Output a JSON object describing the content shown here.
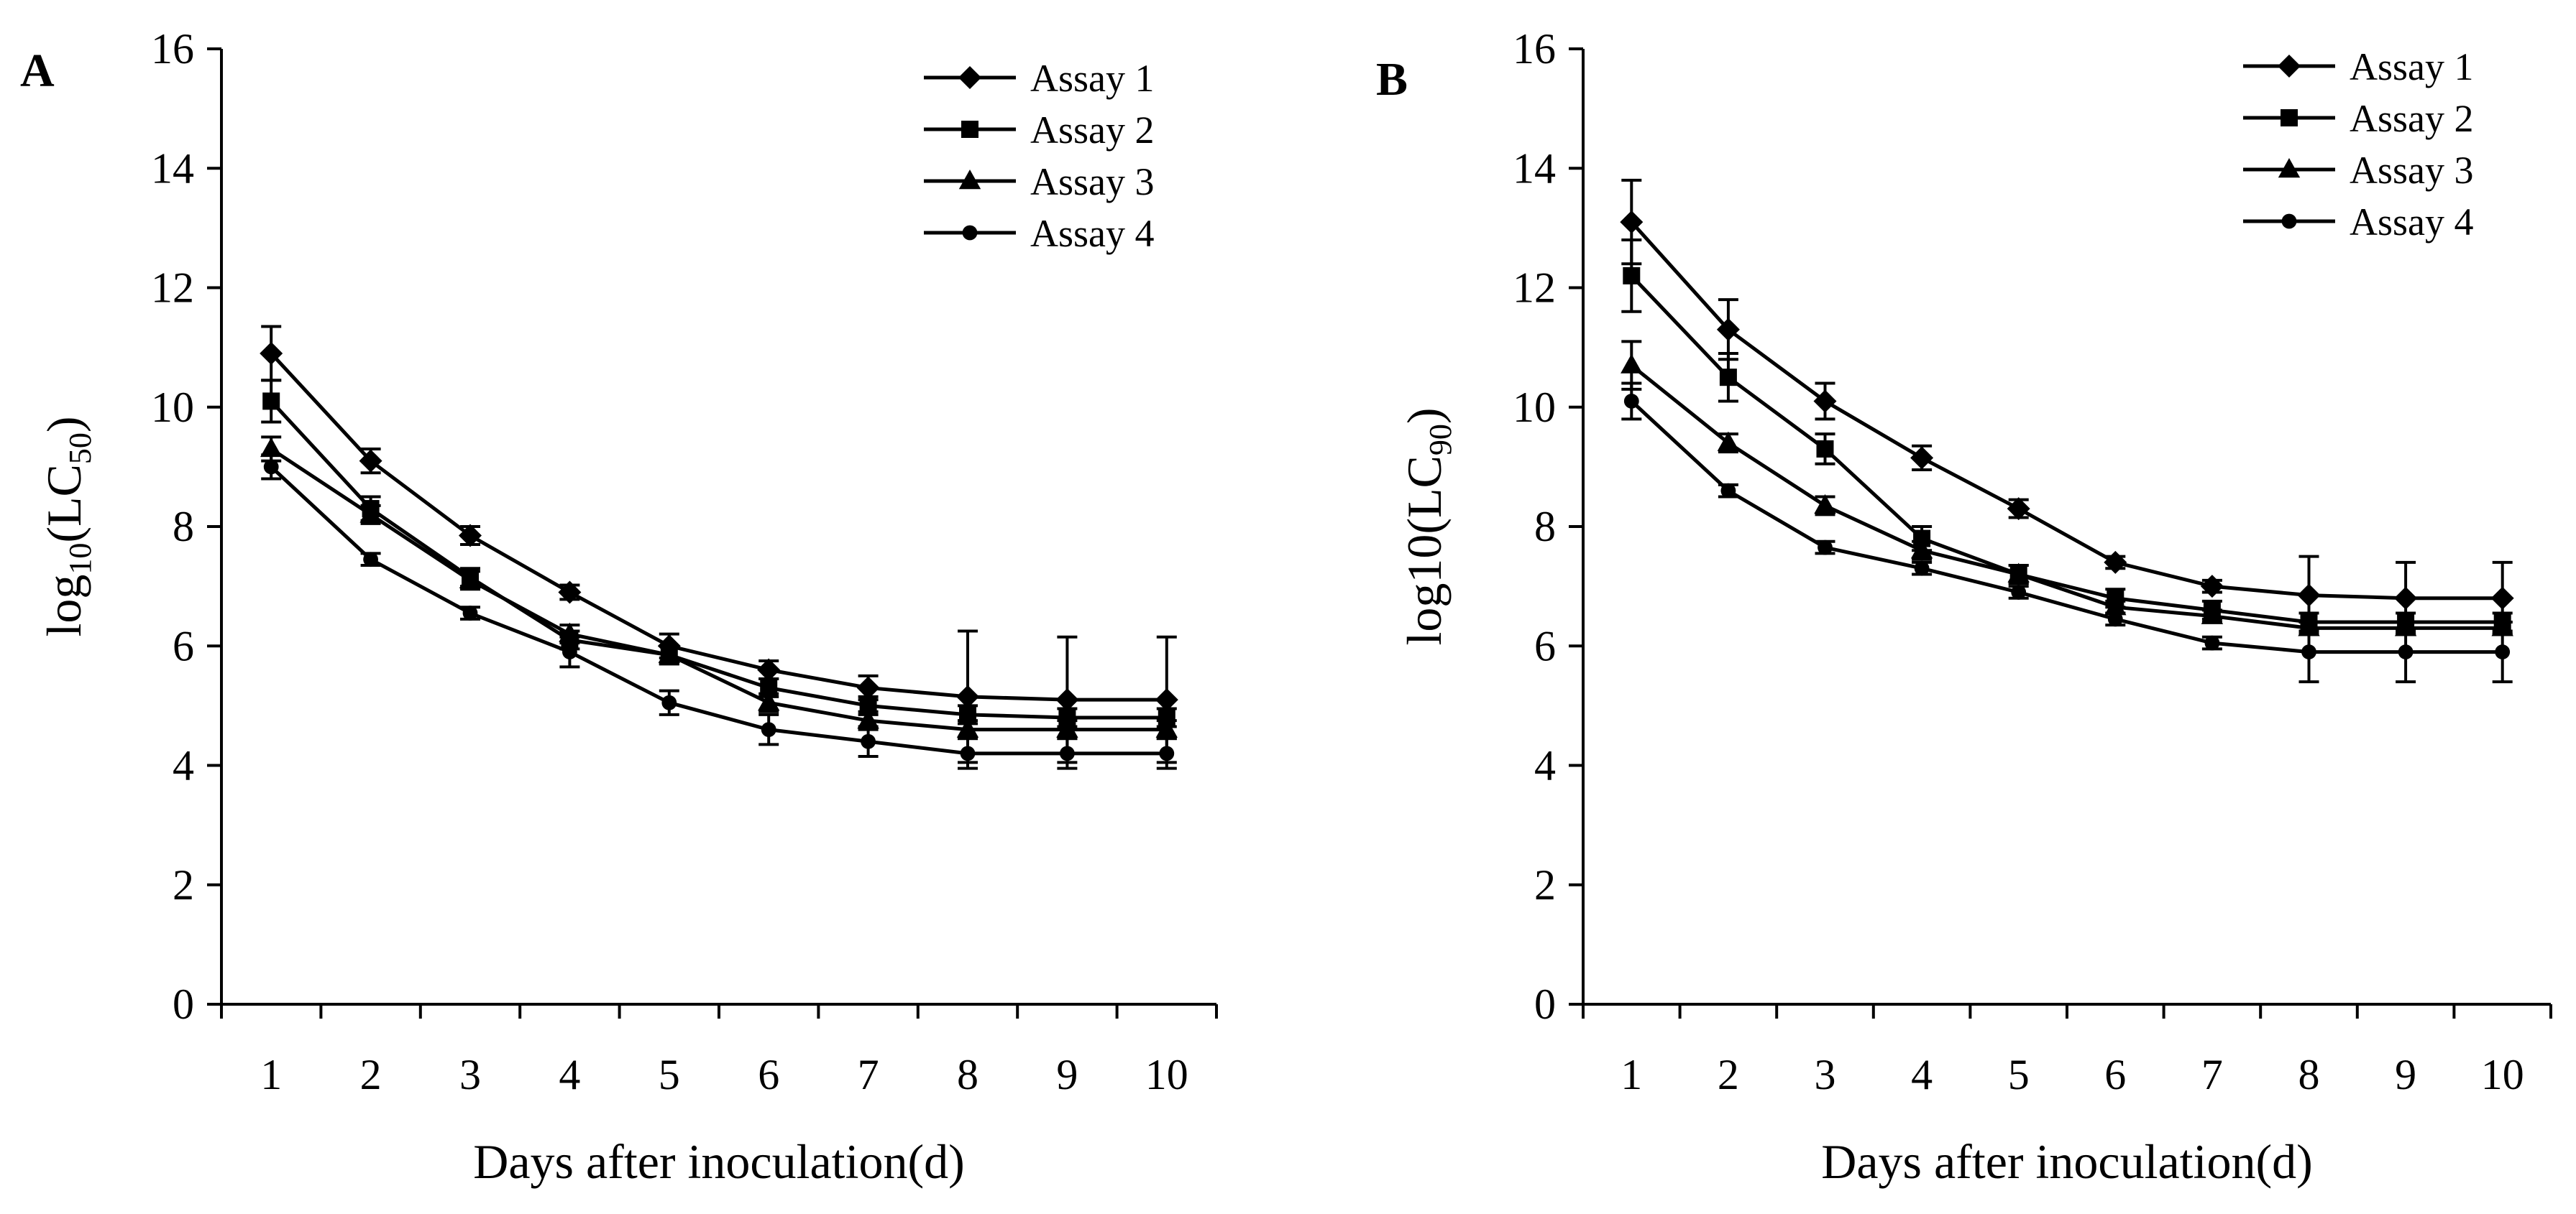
{
  "chart_data": [
    {
      "type": "line",
      "panel_label": "A",
      "ylabel_main": "log",
      "ylabel_sub": "10",
      "ylabel_mid": "(LC",
      "ylabel_sub2": "50",
      "ylabel_end": ")",
      "xlabel": "Days after inoculation(d)",
      "ylim": [
        0,
        16
      ],
      "yticks": [
        0,
        2,
        4,
        6,
        8,
        10,
        12,
        14,
        16
      ],
      "categories": [
        "1",
        "2",
        "3",
        "4",
        "5",
        "6",
        "7",
        "8",
        "9",
        "10"
      ],
      "legend_position": "top-right",
      "series": [
        {
          "name": "Assay 1",
          "marker": "diamond",
          "values": [
            10.9,
            9.1,
            7.85,
            6.9,
            6.0,
            5.6,
            5.3,
            5.15,
            5.1,
            5.1
          ],
          "errors": [
            0.45,
            0.2,
            0.15,
            0.12,
            0.2,
            0.15,
            0.2,
            1.1,
            1.05,
            1.05
          ]
        },
        {
          "name": "Assay 2",
          "marker": "square",
          "values": [
            10.1,
            8.3,
            7.15,
            6.1,
            5.85,
            5.3,
            5.0,
            4.85,
            4.8,
            4.8
          ],
          "errors": [
            0.35,
            0.2,
            0.15,
            0.15,
            0.15,
            0.15,
            0.15,
            0.15,
            0.15,
            0.15
          ]
        },
        {
          "name": "Assay 3",
          "marker": "triangle",
          "values": [
            9.3,
            8.2,
            7.1,
            6.2,
            5.85,
            5.05,
            4.75,
            4.6,
            4.6,
            4.6
          ],
          "errors": [
            0.2,
            0.15,
            0.15,
            0.15,
            0.15,
            0.15,
            0.15,
            0.15,
            0.15,
            0.15
          ]
        },
        {
          "name": "Assay 4",
          "marker": "circle",
          "values": [
            9.0,
            7.45,
            6.55,
            5.9,
            5.05,
            4.6,
            4.4,
            4.2,
            4.2,
            4.2
          ],
          "errors": [
            0.2,
            0.1,
            0.1,
            0.25,
            0.2,
            0.25,
            0.25,
            0.25,
            0.25,
            0.25
          ]
        }
      ]
    },
    {
      "type": "line",
      "panel_label": "B",
      "ylabel_main": "log10",
      "ylabel_sub": "",
      "ylabel_mid": "(LC",
      "ylabel_sub2": "90",
      "ylabel_end": ")",
      "xlabel": "Days after inoculation(d)",
      "ylim": [
        0,
        16
      ],
      "yticks": [
        0,
        2,
        4,
        6,
        8,
        10,
        12,
        14,
        16
      ],
      "categories": [
        "1",
        "2",
        "3",
        "4",
        "5",
        "6",
        "7",
        "8",
        "9",
        "10"
      ],
      "legend_position": "top-right",
      "series": [
        {
          "name": "Assay 1",
          "marker": "diamond",
          "values": [
            13.1,
            11.3,
            10.1,
            9.15,
            8.3,
            7.4,
            7.0,
            6.85,
            6.8,
            6.8
          ],
          "errors": [
            0.7,
            0.5,
            0.3,
            0.2,
            0.15,
            0.1,
            0.1,
            0.65,
            0.6,
            0.6
          ]
        },
        {
          "name": "Assay 2",
          "marker": "square",
          "values": [
            12.2,
            10.5,
            9.3,
            7.8,
            7.2,
            6.8,
            6.6,
            6.4,
            6.4,
            6.4
          ],
          "errors": [
            0.6,
            0.4,
            0.25,
            0.2,
            0.15,
            0.15,
            0.15,
            0.15,
            0.15,
            0.15
          ]
        },
        {
          "name": "Assay 3",
          "marker": "triangle",
          "values": [
            10.7,
            9.4,
            8.35,
            7.6,
            7.2,
            6.65,
            6.5,
            6.3,
            6.3,
            6.3
          ],
          "errors": [
            0.4,
            0.15,
            0.15,
            0.15,
            0.15,
            0.1,
            0.1,
            0.1,
            0.1,
            0.1
          ]
        },
        {
          "name": "Assay 4",
          "marker": "circle",
          "values": [
            10.1,
            8.6,
            7.65,
            7.3,
            6.9,
            6.45,
            6.05,
            5.9,
            5.9,
            5.9
          ],
          "errors": [
            0.3,
            0.1,
            0.1,
            0.1,
            0.1,
            0.1,
            0.1,
            0.5,
            0.5,
            0.5
          ]
        }
      ]
    }
  ]
}
